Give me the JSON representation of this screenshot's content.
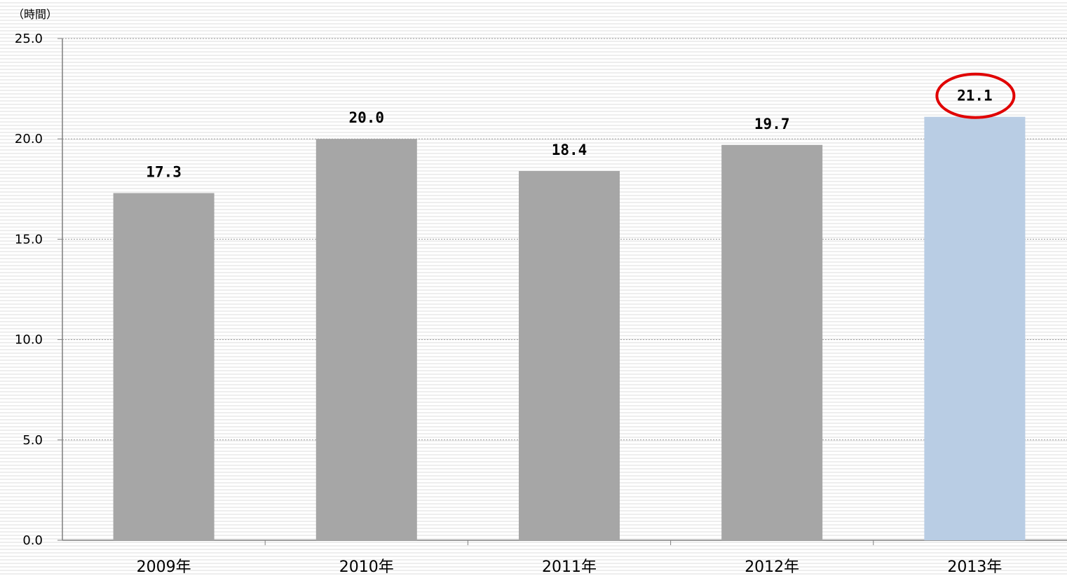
{
  "chart_data": {
    "type": "bar",
    "title": "",
    "ylabel": "（時間）",
    "xlabel": "",
    "categories": [
      "2009年",
      "2010年",
      "2011年",
      "2012年",
      "2013年"
    ],
    "values": [
      17.3,
      20.0,
      18.4,
      19.7,
      21.1
    ],
    "value_labels": [
      "17.3",
      "20.0",
      "18.4",
      "19.7",
      "21.1"
    ],
    "ylim": [
      0,
      25
    ],
    "y_ticks": [
      0,
      5,
      10,
      15,
      20,
      25
    ],
    "y_tick_labels": [
      "0.0",
      "5.0",
      "10.0",
      "15.0",
      "20.0",
      "25.0"
    ],
    "grid": true,
    "legend": "none",
    "colors": {
      "bar": "#a6a6a6",
      "highlight_bar": "#b9cde4",
      "highlight_circle": "#e00000",
      "gridline": "#999999",
      "axis": "#7f7f7f"
    },
    "highlight_index": 4
  }
}
